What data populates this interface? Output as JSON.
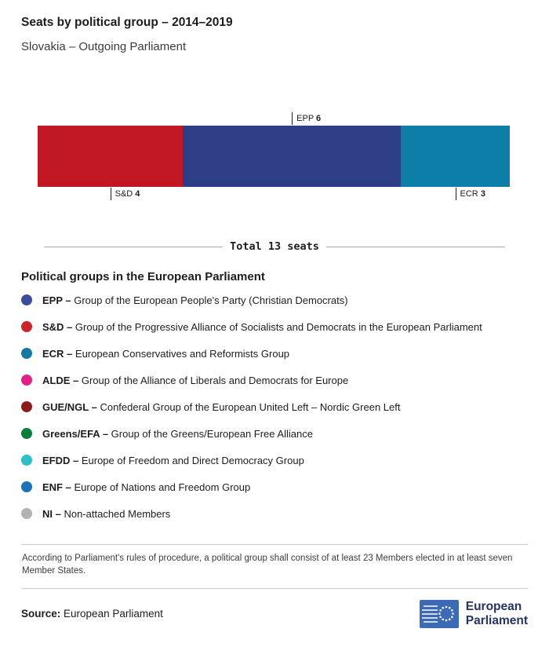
{
  "header": {
    "title": "Seats by political group – 2014–2019",
    "subtitle": "Slovakia – Outgoing Parliament"
  },
  "chart_data": {
    "type": "bar",
    "orientation": "horizontal-stacked",
    "title": "Seats by political group – 2014–2019",
    "subtitle": "Slovakia – Outgoing Parliament",
    "total_seats": 13,
    "total_label": "Total 13 seats",
    "series": [
      {
        "name": "S&D",
        "value": 4,
        "color": "#c01722",
        "label_position": "below"
      },
      {
        "name": "EPP",
        "value": 6,
        "color": "#2d3e87",
        "label_position": "above"
      },
      {
        "name": "ECR",
        "value": 3,
        "color": "#0d7ea8",
        "label_position": "below"
      }
    ]
  },
  "legend": {
    "heading": "Political groups in the European Parliament",
    "items": [
      {
        "abbr": "EPP –",
        "desc": "Group of the European People's Party (Christian Democrats)",
        "color": "#3b4d9b"
      },
      {
        "abbr": "S&D –",
        "desc": "Group of the Progressive Alliance of Socialists and Democrats in the European Parliament",
        "color": "#c9252b"
      },
      {
        "abbr": "ECR –",
        "desc": "European Conservatives and Reformists Group",
        "color": "#1779a3"
      },
      {
        "abbr": "ALDE –",
        "desc": "Group of the Alliance of Liberals and Democrats for Europe",
        "color": "#e02187"
      },
      {
        "abbr": "GUE/NGL –",
        "desc": "Confederal Group of the European United Left – Nordic Green Left",
        "color": "#8d1b1b"
      },
      {
        "abbr": "Greens/EFA –",
        "desc": "Group of the Greens/European Free Alliance",
        "color": "#0b7e3d"
      },
      {
        "abbr": "EFDD –",
        "desc": "Europe of Freedom and Direct Democracy Group",
        "color": "#2fbfc9"
      },
      {
        "abbr": "ENF –",
        "desc": "Europe of Nations and Freedom Group",
        "color": "#1d71b8"
      },
      {
        "abbr": "NI –",
        "desc": "Non-attached Members",
        "color": "#b2b2b2"
      }
    ]
  },
  "footnote": "According to Parliament's rules of procedure, a political group shall consist of at least 23 Members elected in at least seven Member States.",
  "source": {
    "label": "Source:",
    "text": "European Parliament"
  },
  "logo": {
    "line1": "European",
    "line2": "Parliament"
  }
}
